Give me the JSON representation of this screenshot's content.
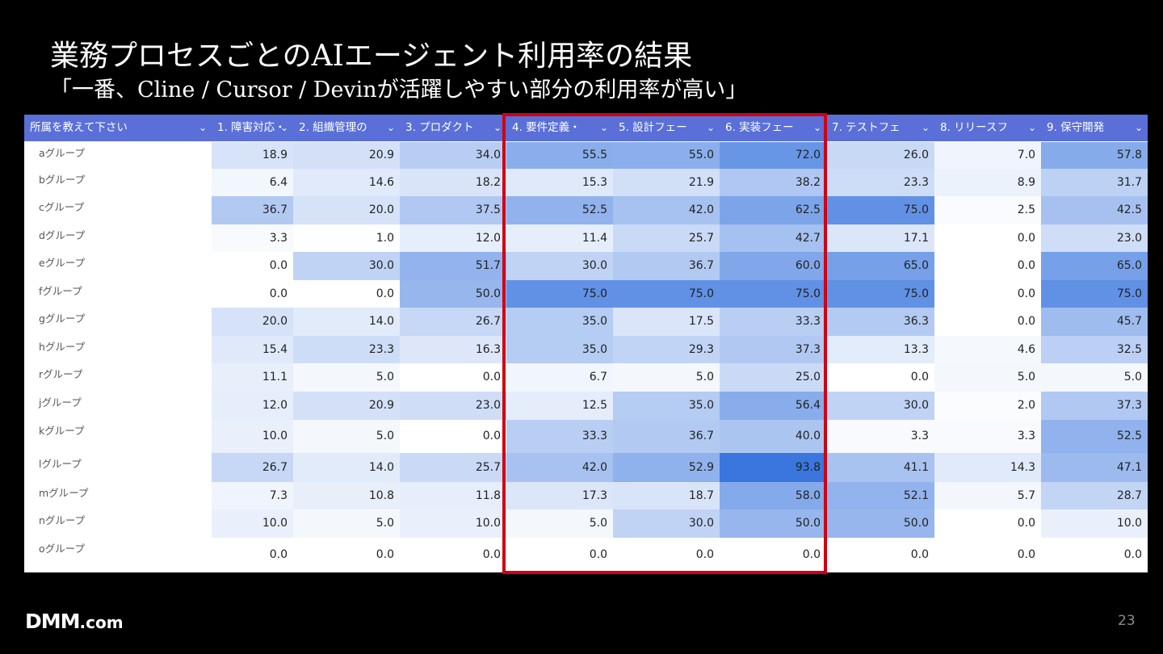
{
  "slide": {
    "title": "業務プロセスごとのAIエージェント利用率の結果",
    "subtitle": "「一番、Cline / Cursor / Devinが活躍しやすい部分の利用率が高い」",
    "page_number": "23",
    "logo_main": "DMM",
    "logo_suffix": ".com",
    "highlight_color": "#d00012"
  },
  "table": {
    "header_color": "#5a6fd8",
    "columns": [
      {
        "label": "所属を教えて下さい",
        "icon": "chevron-down-icon"
      },
      {
        "label": "1. 障害対応・",
        "icon": "chevron-down-icon"
      },
      {
        "label": "2. 組織管理の",
        "icon": "chevron-down-icon"
      },
      {
        "label": "3. プロダクト",
        "icon": "chevron-down-icon"
      },
      {
        "label": "4. 要件定義・",
        "icon": "chevron-down-icon"
      },
      {
        "label": "5. 設計フェー",
        "icon": "chevron-down-icon"
      },
      {
        "label": "6. 実装フェー",
        "icon": "chevron-down-icon"
      },
      {
        "label": "7. テストフェ",
        "icon": "chevron-down-icon"
      },
      {
        "label": "8. リリースフ",
        "icon": "chevron-down-icon"
      },
      {
        "label": "9. 保守開発",
        "icon": "chevron-down-icon"
      }
    ],
    "rows": [
      {
        "group": "aグループ",
        "values": [
          "18.9",
          "20.9",
          "34.0",
          "55.5",
          "55.0",
          "72.0",
          "26.0",
          "7.0",
          "57.8"
        ]
      },
      {
        "group": "bグループ",
        "values": [
          "6.4",
          "14.6",
          "18.2",
          "15.3",
          "21.9",
          "38.2",
          "23.3",
          "8.9",
          "31.7"
        ]
      },
      {
        "group": "cグループ",
        "values": [
          "36.7",
          "20.0",
          "37.5",
          "52.5",
          "42.0",
          "62.5",
          "75.0",
          "2.5",
          "42.5"
        ]
      },
      {
        "group": "dグループ",
        "values": [
          "3.3",
          "1.0",
          "12.0",
          "11.4",
          "25.7",
          "42.7",
          "17.1",
          "0.0",
          "23.0"
        ]
      },
      {
        "group": "eグループ",
        "values": [
          "0.0",
          "30.0",
          "51.7",
          "30.0",
          "36.7",
          "60.0",
          "65.0",
          "0.0",
          "65.0"
        ]
      },
      {
        "group": "fグループ",
        "values": [
          "0.0",
          "0.0",
          "50.0",
          "75.0",
          "75.0",
          "75.0",
          "75.0",
          "0.0",
          "75.0"
        ]
      },
      {
        "group": "gグループ",
        "values": [
          "20.0",
          "14.0",
          "26.7",
          "35.0",
          "17.5",
          "33.3",
          "36.3",
          "0.0",
          "45.7"
        ]
      },
      {
        "group": "hグループ",
        "values": [
          "15.4",
          "23.3",
          "16.3",
          "35.0",
          "29.3",
          "37.3",
          "13.3",
          "4.6",
          "32.5"
        ]
      },
      {
        "group": "rグループ",
        "values": [
          "11.1",
          "5.0",
          "0.0",
          "6.7",
          "5.0",
          "25.0",
          "0.0",
          "5.0",
          "5.0"
        ]
      },
      {
        "group": "jグループ",
        "values": [
          "12.0",
          "20.9",
          "23.0",
          "12.5",
          "35.0",
          "56.4",
          "30.0",
          "2.0",
          "37.3"
        ]
      },
      {
        "group": "kグループ",
        "values": [
          "10.0",
          "5.0",
          "0.0",
          "33.3",
          "36.7",
          "40.0",
          "3.3",
          "3.3",
          "52.5"
        ]
      },
      {
        "group": "lグループ",
        "values": [
          "26.7",
          "14.0",
          "25.7",
          "42.0",
          "52.9",
          "93.8",
          "41.1",
          "14.3",
          "47.1"
        ]
      },
      {
        "group": "mグループ",
        "values": [
          "7.3",
          "10.8",
          "11.8",
          "17.3",
          "18.7",
          "58.0",
          "52.1",
          "5.7",
          "28.7"
        ]
      },
      {
        "group": "nグループ",
        "values": [
          "10.0",
          "5.0",
          "10.0",
          "5.0",
          "30.0",
          "50.0",
          "50.0",
          "0.0",
          "10.0"
        ]
      },
      {
        "group": "oグループ",
        "values": [
          "0.0",
          "0.0",
          "0.0",
          "0.0",
          "0.0",
          "0.0",
          "0.0",
          "0.0",
          "0.0"
        ]
      }
    ]
  }
}
